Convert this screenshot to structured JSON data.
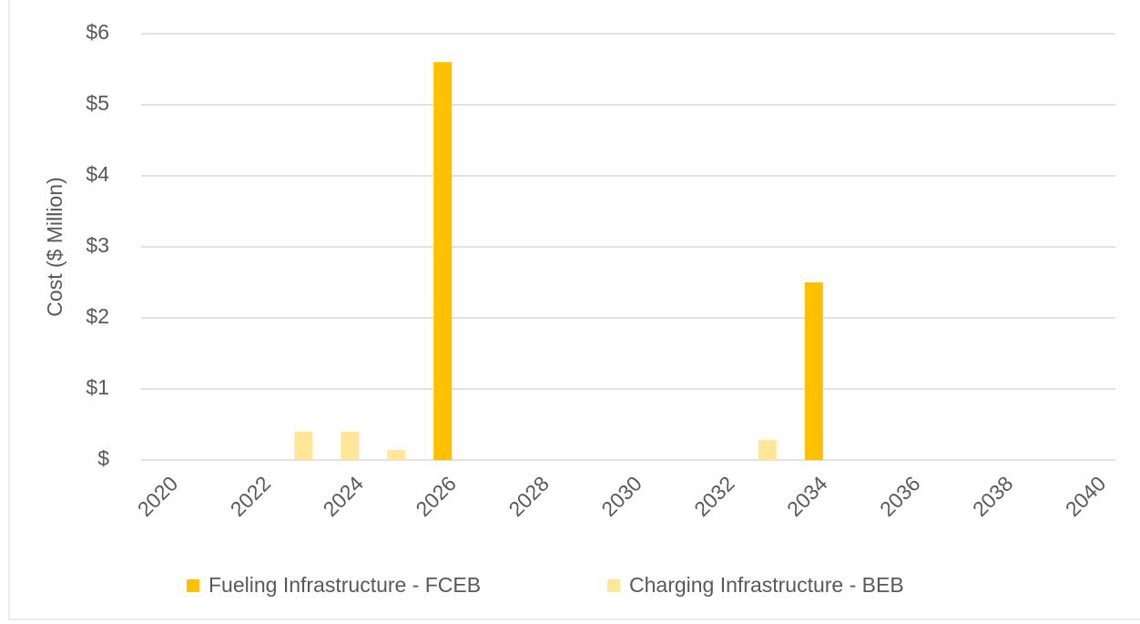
{
  "chart_data": {
    "type": "bar",
    "stacked": true,
    "y_label": "Cost ($ Million)",
    "categories": [
      "2020",
      null,
      "2022",
      null,
      "2024",
      null,
      "2026",
      null,
      "2028",
      null,
      "2030",
      null,
      "2032",
      null,
      "2034",
      null,
      "2036",
      null,
      "2038",
      null,
      "2040"
    ],
    "series": [
      {
        "name": "Fueling Infrastructure - FCEB",
        "color": "#ffc000",
        "values": [
          0,
          0,
          0,
          0,
          0,
          0,
          5.6,
          0,
          0,
          0,
          0,
          0,
          0,
          0,
          2.5,
          0,
          0,
          0,
          0,
          0,
          0
        ]
      },
      {
        "name": "Charging Infrastructure - BEB",
        "color": "#ffe699",
        "values": [
          0,
          0,
          0,
          0.4,
          0.4,
          0.14,
          0,
          0,
          0,
          0,
          0,
          0,
          0,
          0.28,
          0,
          0,
          0,
          0,
          0,
          0,
          0
        ]
      }
    ],
    "ylim": [
      0,
      6
    ],
    "yticks": [
      {
        "value": 0,
        "label": "$"
      },
      {
        "value": 1,
        "label": "$1"
      },
      {
        "value": 2,
        "label": "$2"
      },
      {
        "value": 3,
        "label": "$3"
      },
      {
        "value": 4,
        "label": "$4"
      },
      {
        "value": 5,
        "label": "$5"
      },
      {
        "value": 6,
        "label": "$6"
      }
    ],
    "grid": true,
    "legend": "bottom"
  }
}
